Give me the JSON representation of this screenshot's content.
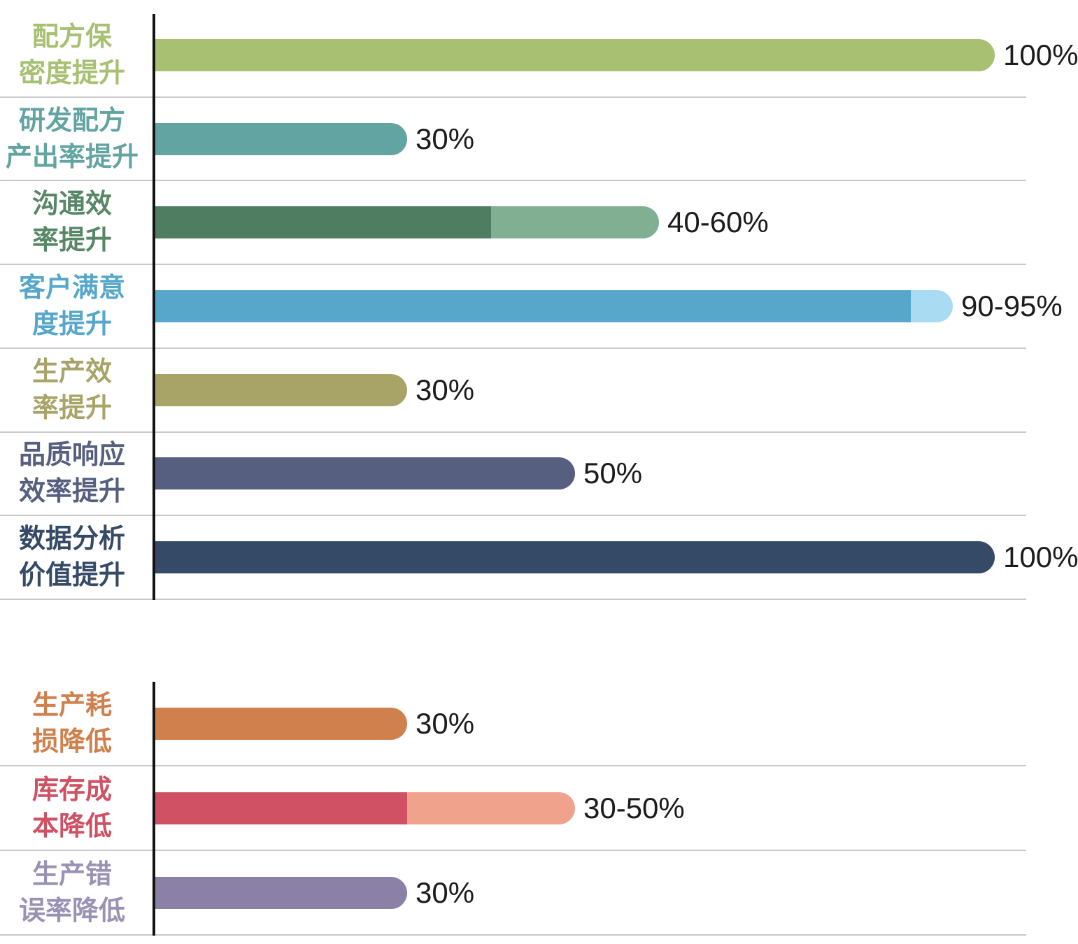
{
  "page": {
    "background": "#ffffff",
    "axis_color": "#141414",
    "gridline_color": "#c9c9c9",
    "value_text_color": "#1c1c1c"
  },
  "chart_data": [
    {
      "type": "bar",
      "orientation": "horizontal",
      "title": "",
      "xlabel": "",
      "ylabel": "",
      "axis_range_percent": [
        0,
        100
      ],
      "grid": "row-dividers",
      "legend": "none",
      "categories": [
        "配方保密度提升",
        "研发配方产出率提升",
        "沟通效率提升",
        "客户满意度提升",
        "生产效率提升",
        "品质响应效率提升",
        "数据分析价值提升"
      ],
      "rows": [
        {
          "category": "配方保密度提升",
          "label_lines": [
            "配方保",
            "密度提升"
          ],
          "label_color": "#a7c071",
          "value_label": "100%",
          "value_min": 100,
          "value_max": 100,
          "color": "#a7c071",
          "color_light": null
        },
        {
          "category": "研发配方产出率提升",
          "label_lines": [
            "研发配方",
            "产出率提升"
          ],
          "label_color": "#62a4a1",
          "value_label": "30%",
          "value_min": 30,
          "value_max": 30,
          "color": "#62a4a1",
          "color_light": null
        },
        {
          "category": "沟通效率提升",
          "label_lines": [
            "沟通效",
            "率提升"
          ],
          "label_color": "#578766",
          "value_label": "40-60%",
          "value_min": 40,
          "value_max": 60,
          "color": "#4f7d61",
          "color_light": "#80af92"
        },
        {
          "category": "客户满意度提升",
          "label_lines": [
            "客户满意",
            "度提升"
          ],
          "label_color": "#56a7c9",
          "value_label": "90-95%",
          "value_min": 90,
          "value_max": 95,
          "color": "#56a7c9",
          "color_light": "#a9dcf2"
        },
        {
          "category": "生产效率提升",
          "label_lines": [
            "生产效",
            "率提升"
          ],
          "label_color": "#a8a468",
          "value_label": "30%",
          "value_min": 30,
          "value_max": 30,
          "color": "#a8a468",
          "color_light": null
        },
        {
          "category": "品质响应效率提升",
          "label_lines": [
            "品质响应",
            "效率提升"
          ],
          "label_color": "#565f80",
          "value_label": "50%",
          "value_min": 50,
          "value_max": 50,
          "color": "#565f80",
          "color_light": null
        },
        {
          "category": "数据分析价值提升",
          "label_lines": [
            "数据分析",
            "价值提升"
          ],
          "label_color": "#354a67",
          "value_label": "100%",
          "value_min": 100,
          "value_max": 100,
          "color": "#354a67",
          "color_light": null
        }
      ]
    },
    {
      "type": "bar",
      "orientation": "horizontal",
      "title": "",
      "xlabel": "",
      "ylabel": "",
      "axis_range_percent": [
        0,
        100
      ],
      "grid": "row-dividers",
      "legend": "none",
      "categories": [
        "生产耗损降低",
        "库存成本降低",
        "生产错误率降低"
      ],
      "rows": [
        {
          "category": "生产耗损降低",
          "label_lines": [
            "生产耗",
            "损降低"
          ],
          "label_color": "#d0804d",
          "value_label": "30%",
          "value_min": 30,
          "value_max": 30,
          "color": "#d0804d",
          "color_light": null
        },
        {
          "category": "库存成本降低",
          "label_lines": [
            "库存成",
            "本降低"
          ],
          "label_color": "#cf5163",
          "value_label": "30-50%",
          "value_min": 30,
          "value_max": 50,
          "color": "#cf5163",
          "color_light": "#f0a28d"
        },
        {
          "category": "生产错误率降低",
          "label_lines": [
            "生产错",
            "误率降低"
          ],
          "label_color": "#9b91b4",
          "value_label": "30%",
          "value_min": 30,
          "value_max": 30,
          "color": "#8b80a5",
          "color_light": null
        }
      ]
    }
  ]
}
